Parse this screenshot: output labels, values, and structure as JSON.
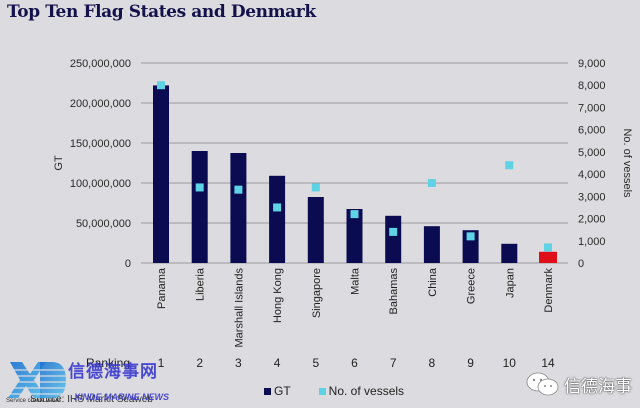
{
  "title": "Top Ten Flag States and Denmark",
  "chart_data": {
    "type": "bar",
    "title": "Top Ten Flag States and Denmark",
    "categories": [
      "Panama",
      "Liberia",
      "Marshall Islands",
      "Hong Kong",
      "Singapore",
      "Malta",
      "Bahamas",
      "China",
      "Greece",
      "Japan",
      "Denmark"
    ],
    "rankings": [
      "1",
      "2",
      "3",
      "4",
      "5",
      "6",
      "7",
      "8",
      "9",
      "10",
      "14"
    ],
    "series": [
      {
        "name": "GT",
        "axis": "left",
        "mark": "bar",
        "color": "#0b0b52",
        "values": [
          222000000,
          140000000,
          137500000,
          109000000,
          82500000,
          67500000,
          59000000,
          46000000,
          41000000,
          24000000,
          14000000
        ],
        "highlight": {
          "index": 10,
          "color": "#e0101a"
        }
      },
      {
        "name": "No. of vessels",
        "axis": "right",
        "mark": "square",
        "color": "#5fd3e6",
        "values": [
          8000,
          3400,
          3300,
          2500,
          3400,
          2200,
          1400,
          3600,
          1200,
          4400,
          700
        ]
      }
    ],
    "ylabel": "GT",
    "ylabel_right": "No. of vessels",
    "ylim": [
      0,
      250000000
    ],
    "ylim_right": [
      0,
      9000
    ],
    "yticks": [
      "0",
      "50,000,000",
      "100,000,000",
      "150,000,000",
      "200,000,000",
      "250,000,000"
    ],
    "yticks_right": [
      "0",
      "1,000",
      "2,000",
      "3,000",
      "4,000",
      "5,000",
      "6,000",
      "7,000",
      "8,000",
      "9,000"
    ],
    "grid": true,
    "legend_position": "bottom"
  },
  "ranking_label": "Ranking",
  "legend": [
    {
      "label": "GT",
      "color": "#0b0b52"
    },
    {
      "label": "No. of vessels",
      "color": "#5fd3e6"
    }
  ],
  "source": "Source: IHS Markit Seaweb",
  "watermark": {
    "logo": "XD",
    "cn": "信德海事网",
    "en": "XINDE MARINE NEWS",
    "service": "Service create value",
    "right_text": "信德海事"
  }
}
